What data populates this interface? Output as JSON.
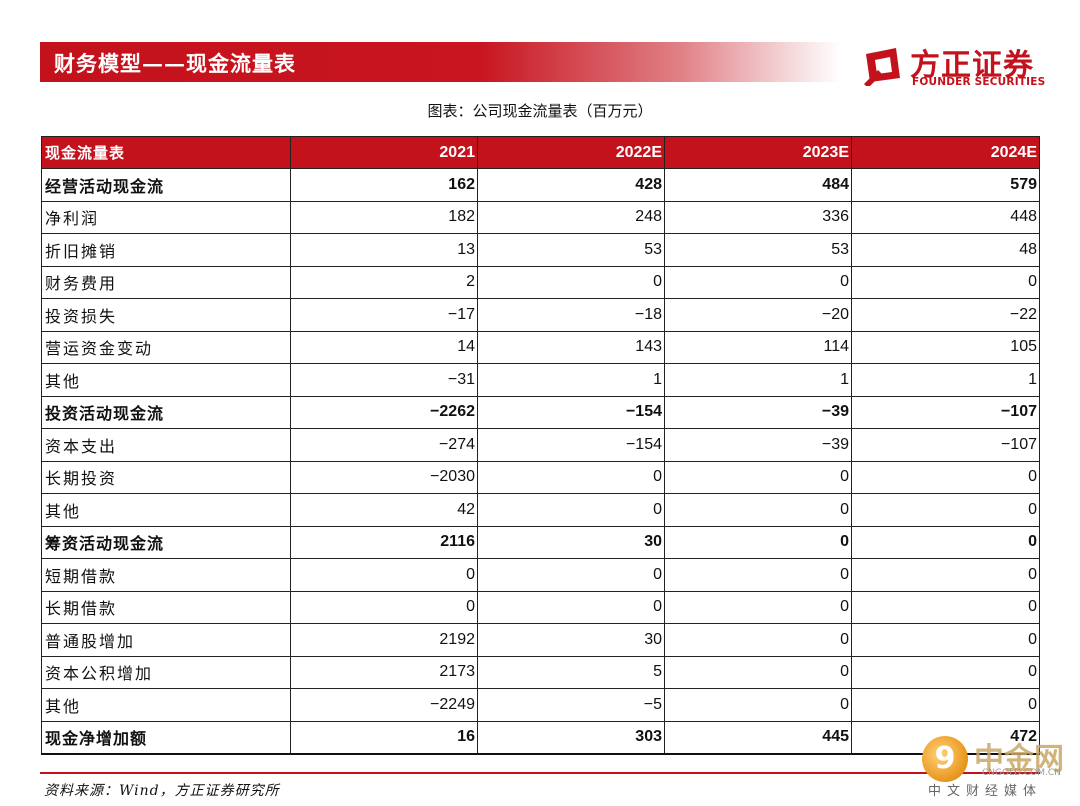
{
  "header": {
    "title": "财务模型——现金流量表",
    "brand_cn": "方正证券",
    "brand_en": "FOUNDER SECURITIES",
    "brand_color": "#c4121d"
  },
  "caption": "图表：公司现金流量表（百万元）",
  "table": {
    "header": [
      "现金流量表",
      "2021",
      "2022E",
      "2023E",
      "2024E"
    ],
    "rows": [
      {
        "label": "经营活动现金流",
        "v": [
          "162",
          "428",
          "484",
          "579"
        ],
        "bold": true
      },
      {
        "label": "净利润",
        "v": [
          "182",
          "248",
          "336",
          "448"
        ],
        "bold": false
      },
      {
        "label": "折旧摊销",
        "v": [
          "13",
          "53",
          "53",
          "48"
        ],
        "bold": false
      },
      {
        "label": "财务费用",
        "v": [
          "2",
          "0",
          "0",
          "0"
        ],
        "bold": false
      },
      {
        "label": "投资损失",
        "v": [
          "−17",
          "−18",
          "−20",
          "−22"
        ],
        "bold": false
      },
      {
        "label": "营运资金变动",
        "v": [
          "14",
          "143",
          "114",
          "105"
        ],
        "bold": false
      },
      {
        "label": "其他",
        "v": [
          "−31",
          "1",
          "1",
          "1"
        ],
        "bold": false
      },
      {
        "label": "投资活动现金流",
        "v": [
          "−2262",
          "−154",
          "−39",
          "−107"
        ],
        "bold": true
      },
      {
        "label": "资本支出",
        "v": [
          "−274",
          "−154",
          "−39",
          "−107"
        ],
        "bold": false
      },
      {
        "label": "长期投资",
        "v": [
          "−2030",
          "0",
          "0",
          "0"
        ],
        "bold": false
      },
      {
        "label": "其他",
        "v": [
          "42",
          "0",
          "0",
          "0"
        ],
        "bold": false
      },
      {
        "label": "筹资活动现金流",
        "v": [
          "2116",
          "30",
          "0",
          "0"
        ],
        "bold": true
      },
      {
        "label": "短期借款",
        "v": [
          "0",
          "0",
          "0",
          "0"
        ],
        "bold": false
      },
      {
        "label": "长期借款",
        "v": [
          "0",
          "0",
          "0",
          "0"
        ],
        "bold": false
      },
      {
        "label": "普通股增加",
        "v": [
          "2192",
          "30",
          "0",
          "0"
        ],
        "bold": false
      },
      {
        "label": "资本公积增加",
        "v": [
          "2173",
          "5",
          "0",
          "0"
        ],
        "bold": false
      },
      {
        "label": "其他",
        "v": [
          "−2249",
          "−5",
          "0",
          "0"
        ],
        "bold": false
      },
      {
        "label": "现金净增加额",
        "v": [
          "16",
          "303",
          "445",
          "472"
        ],
        "bold": true
      }
    ]
  },
  "source": "资料来源：Wind，方正证券研究所",
  "watermark": {
    "cn": "中金网",
    "url": "CNGOLD.COM.CN",
    "sub": "中文财经媒体"
  }
}
